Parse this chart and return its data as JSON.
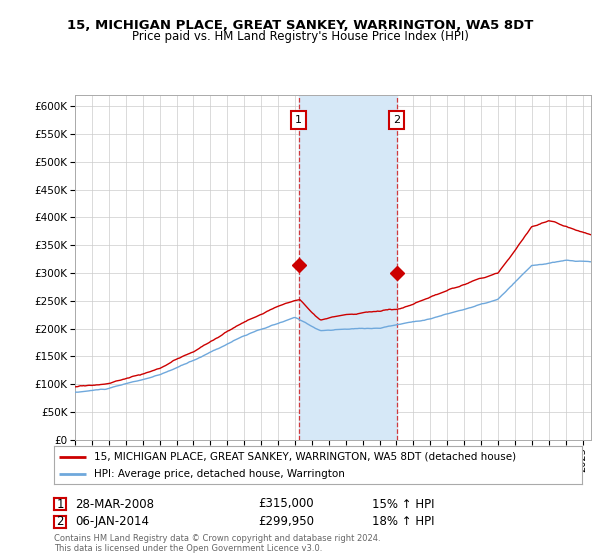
{
  "title": "15, MICHIGAN PLACE, GREAT SANKEY, WARRINGTON, WA5 8DT",
  "subtitle": "Price paid vs. HM Land Registry's House Price Index (HPI)",
  "legend_line1": "15, MICHIGAN PLACE, GREAT SANKEY, WARRINGTON, WA5 8DT (detached house)",
  "legend_line2": "HPI: Average price, detached house, Warrington",
  "annotation1_label": "1",
  "annotation1_date": "28-MAR-2008",
  "annotation1_price": "£315,000",
  "annotation1_hpi": "15% ↑ HPI",
  "annotation2_label": "2",
  "annotation2_date": "06-JAN-2014",
  "annotation2_price": "£299,950",
  "annotation2_hpi": "18% ↑ HPI",
  "footer": "Contains HM Land Registry data © Crown copyright and database right 2024.\nThis data is licensed under the Open Government Licence v3.0.",
  "sale1_year": 2008.23,
  "sale1_value": 315000,
  "sale2_year": 2014.02,
  "sale2_value": 299950,
  "shade_xmin": 2008.23,
  "shade_xmax": 2014.02,
  "hpi_color": "#6fa8dc",
  "price_color": "#cc0000",
  "shade_color": "#d6e8f7",
  "background_color": "#ffffff",
  "ylim_min": 0,
  "ylim_max": 620000,
  "xmin": 1995,
  "xmax": 2025.5
}
